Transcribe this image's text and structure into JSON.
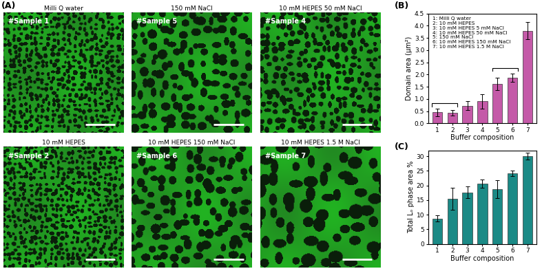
{
  "panel_labels": [
    "(A)",
    "(B)",
    "(C)"
  ],
  "images": [
    {
      "title": "Milli Q water",
      "label": "#Sample 1"
    },
    {
      "title": "150 mM NaCl",
      "label": "#Sample 5"
    },
    {
      "title": "10 mM HEPES 50 mM NaCl",
      "label": "#Sample 4"
    },
    {
      "title": "10 mM HEPES",
      "label": "#Sample 2"
    },
    {
      "title": "10 mM HEPES 150 mM NaCl",
      "label": "#Sample 6"
    },
    {
      "title": "10 mM HEPES 1.5 M NaCl",
      "label": "#Sample 7"
    }
  ],
  "chart_data": [
    {
      "type": "bar",
      "categories": [
        "1",
        "2",
        "3",
        "4",
        "5",
        "6",
        "7"
      ],
      "values": [
        0.45,
        0.43,
        0.72,
        0.9,
        1.62,
        1.87,
        3.8
      ],
      "errors": [
        0.15,
        0.1,
        0.18,
        0.3,
        0.25,
        0.18,
        0.35
      ],
      "color": "#c45aa8",
      "xlabel": "Buffer composition",
      "ylabel": "Domain area (μm²)",
      "ylim": [
        0,
        4.5
      ],
      "yticks": [
        {
          "value": 0,
          "label": "0.0"
        },
        0.5,
        {
          "value": 1,
          "label": "1.0"
        },
        1.5,
        {
          "value": 2,
          "label": "2.0"
        },
        2.5,
        {
          "value": 3,
          "label": "3.0"
        },
        3.5,
        {
          "value": 4,
          "label": "4.0"
        },
        4.5
      ],
      "annotations": [
        "1: Milli Q water",
        "2: 10 mM HEPES",
        "3: 10 mM HEPES 5 mM NaCl",
        "4: 10 mM HEPES 50 mM NaCl",
        "5: 150 mM NaCl",
        "6: 10 mM HEPES 150 mM NaCl",
        "7: 10 mM HEPES 1.5 M NaCl"
      ],
      "brackets": [
        [
          "1",
          "2"
        ],
        [
          "5",
          "6"
        ]
      ]
    },
    {
      "type": "bar",
      "categories": [
        "1",
        "2",
        "3",
        "4",
        "5",
        "6",
        "7"
      ],
      "values": [
        8.7,
        15.4,
        17.6,
        20.6,
        18.7,
        24.2,
        30.1
      ],
      "errors": [
        1.0,
        3.8,
        2.0,
        1.5,
        3.0,
        0.9,
        1.2
      ],
      "color": "#1b8a86",
      "xlabel": "Buffer composition",
      "ylabel": "Total Lₒ phase area %",
      "ylim": [
        0,
        32
      ],
      "yticks": [
        0,
        5,
        10,
        15,
        20,
        25,
        30
      ]
    }
  ]
}
